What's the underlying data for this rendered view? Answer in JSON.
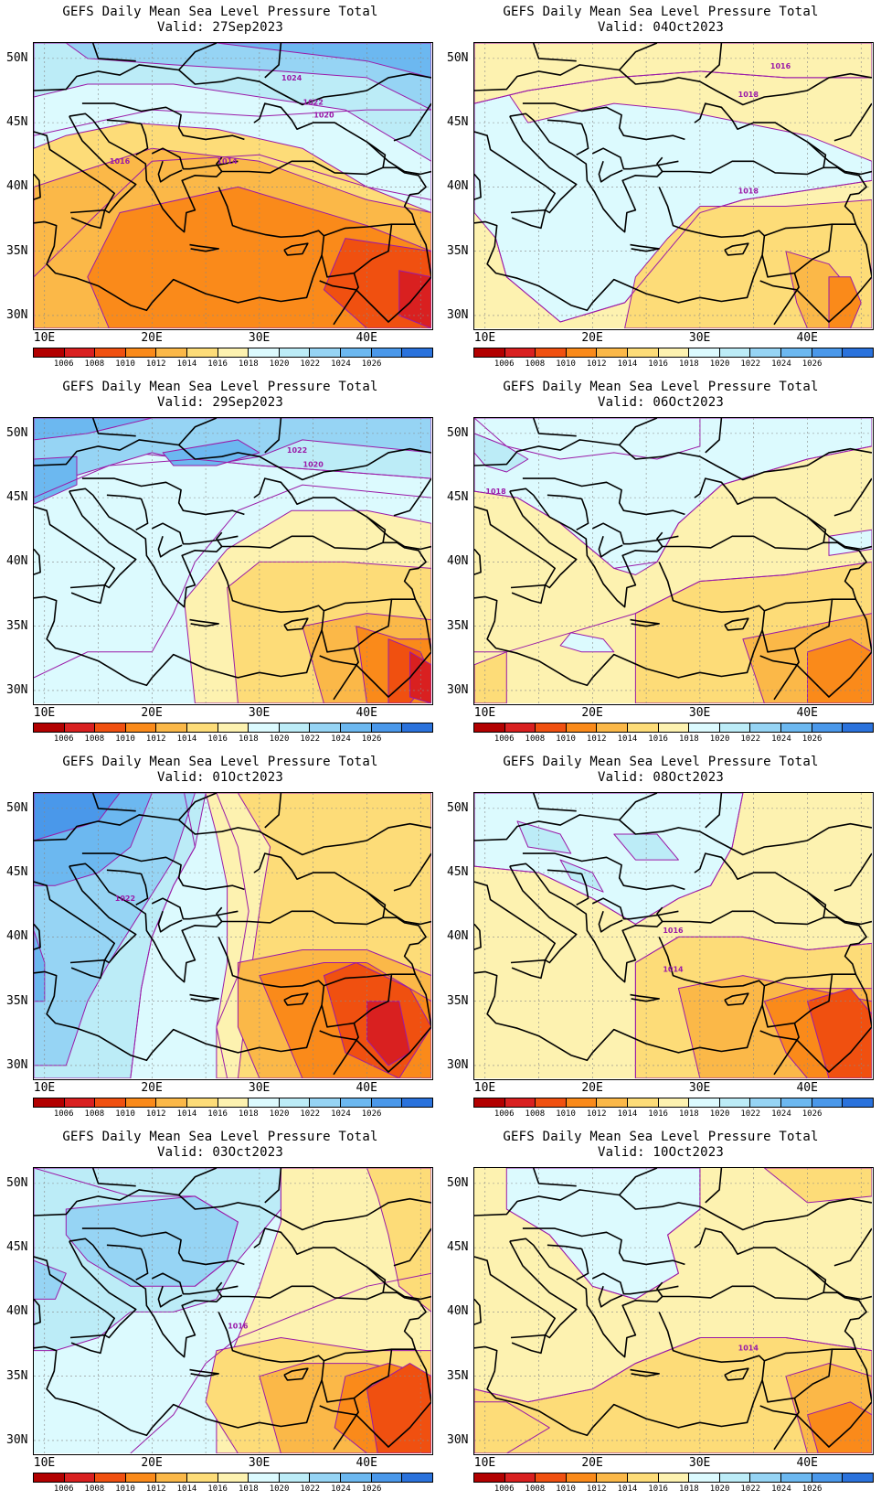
{
  "title": "GEFS Daily Mean Sea Level Pressure Total",
  "valid_prefix": "Valid: ",
  "lat_labels": [
    "50N",
    "45N",
    "40N",
    "35N",
    "30N"
  ],
  "lon_labels": [
    "10E",
    "20E",
    "30E",
    "40E"
  ],
  "colorbar": {
    "levels": [
      "1006",
      "1008",
      "1010",
      "1012",
      "1014",
      "1016",
      "1018",
      "1020",
      "1022",
      "1024",
      "1026"
    ],
    "colors": [
      "#b20000",
      "#d92020",
      "#f05010",
      "#fa8a1a",
      "#fbb848",
      "#fddc78",
      "#fdf2b0",
      "#dcfafe",
      "#bcecf7",
      "#96d4f4",
      "#6cb8f0",
      "#4a98ea",
      "#2a72dc"
    ]
  },
  "panels": [
    {
      "valid": "Valid: 27Sep2023",
      "col": 0,
      "row": 0,
      "contour_labels": [
        "1024",
        "1022",
        "1020",
        "1016",
        "1014"
      ]
    },
    {
      "valid": "Valid: 04Oct2023",
      "col": 1,
      "row": 0,
      "contour_labels": [
        "1016",
        "1018",
        "1018"
      ]
    },
    {
      "valid": "Valid: 29Sep2023",
      "col": 0,
      "row": 1,
      "contour_labels": [
        "1022",
        "1020"
      ]
    },
    {
      "valid": "Valid: 06Oct2023",
      "col": 1,
      "row": 1,
      "contour_labels": [
        "1018"
      ]
    },
    {
      "valid": "Valid: 01Oct2023",
      "col": 0,
      "row": 2,
      "contour_labels": [
        "1022"
      ]
    },
    {
      "valid": "Valid: 08Oct2023",
      "col": 1,
      "row": 2,
      "contour_labels": [
        "1016",
        "1014"
      ]
    },
    {
      "valid": "Valid: 03Oct2023",
      "col": 0,
      "row": 3,
      "contour_labels": [
        "1016"
      ]
    },
    {
      "valid": "Valid: 10Oct2023",
      "col": 1,
      "row": 3,
      "contour_labels": [
        "1014"
      ]
    }
  ]
}
